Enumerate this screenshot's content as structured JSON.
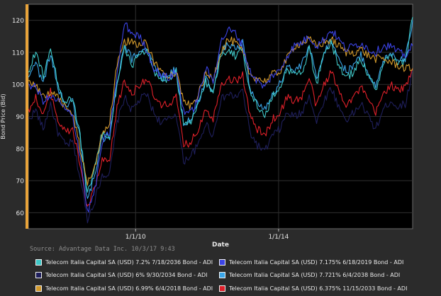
{
  "chart_data": {
    "type": "line",
    "xlabel": "Date",
    "ylabel": "Bond Price (Bid)",
    "x_ticks": [
      "1/1/10",
      "1/1/14"
    ],
    "ylim": [
      55,
      125
    ],
    "y_ticks": [
      60,
      70,
      80,
      90,
      100,
      110,
      120
    ],
    "grid": true,
    "legend_position": "bottom",
    "source": "Source: Advantage Data Inc. 10/3/17 9:43",
    "series": [
      {
        "name": "Telecom Italia Capital SA (USD) 7.2% 7/18/2036 Bond - ADI",
        "color": "#3fc8c8",
        "values": [
          104,
          110,
          103,
          112,
          100,
          94,
          96,
          84,
          66,
          74,
          85,
          84,
          100,
          111,
          106,
          109,
          110,
          104,
          101,
          102,
          104,
          87,
          88,
          94,
          101,
          97,
          109,
          111,
          109,
          111,
          98,
          93,
          90,
          96,
          99,
          105,
          103,
          104,
          111,
          100,
          109,
          113,
          106,
          102,
          104,
          108,
          103,
          98,
          106,
          109,
          106,
          107,
          121
        ]
      },
      {
        "name": "Telecom Italia Capital SA (USD) 7.175% 6/18/2019 Bond - ADI",
        "color": "#3c44e6",
        "values": [
          100,
          99,
          95,
          96,
          95,
          92,
          90,
          78,
          60,
          67,
          82,
          85,
          103,
          119,
          116,
          115,
          111,
          105,
          103,
          102,
          104,
          92,
          91,
          96,
          105,
          101,
          113,
          117,
          116,
          112,
          104,
          101,
          99,
          103,
          104,
          109,
          112,
          113,
          115,
          112,
          114,
          117,
          114,
          111,
          112,
          113,
          111,
          110,
          112,
          112,
          110,
          109,
          112
        ]
      },
      {
        "name": "Telecom Italia Capital SA (USD) 6% 9/30/2034 Bond - ADI",
        "color": "#1f1f5c",
        "values": [
          89,
          92,
          86,
          94,
          85,
          81,
          82,
          71,
          58,
          64,
          72,
          72,
          88,
          96,
          92,
          95,
          97,
          91,
          88,
          89,
          91,
          76,
          78,
          81,
          88,
          84,
          95,
          97,
          96,
          98,
          85,
          81,
          79,
          84,
          86,
          91,
          90,
          91,
          97,
          88,
          95,
          99,
          93,
          89,
          91,
          94,
          90,
          86,
          92,
          95,
          93,
          94,
          104
        ]
      },
      {
        "name": "Telecom Italia Capital SA (USD) 7.721% 6/4/2038 Bond - ADI",
        "color": "#3aa6ea",
        "values": [
          103,
          107,
          100,
          110,
          99,
          93,
          95,
          83,
          64,
          72,
          83,
          83,
          100,
          112,
          108,
          110,
          112,
          106,
          102,
          103,
          105,
          88,
          89,
          94,
          102,
          98,
          110,
          113,
          111,
          113,
          99,
          94,
          92,
          97,
          100,
          106,
          104,
          106,
          112,
          102,
          110,
          114,
          108,
          104,
          106,
          109,
          104,
          99,
          107,
          110,
          108,
          108,
          120
        ]
      },
      {
        "name": "Telecom Italia Capital SA (USD) 6.99% 6/4/2018 Bond - ADI",
        "color": "#d39a2c",
        "values": [
          101,
          100,
          96,
          97,
          96,
          93,
          91,
          80,
          69,
          74,
          85,
          88,
          106,
          113,
          114,
          112,
          113,
          107,
          104,
          103,
          104,
          95,
          93,
          97,
          103,
          102,
          110,
          114,
          113,
          110,
          103,
          102,
          101,
          103,
          104,
          108,
          112,
          113,
          114,
          112,
          113,
          114,
          112,
          110,
          110,
          111,
          109,
          108,
          108,
          107,
          106,
          105,
          105
        ]
      },
      {
        "name": "Telecom Italia Capital SA (USD) 6.375% 11/15/2033 Bond - ADI",
        "color": "#e0202a",
        "values": [
          92,
          96,
          90,
          98,
          89,
          85,
          86,
          75,
          61,
          68,
          76,
          76,
          93,
          101,
          97,
          100,
          102,
          96,
          93,
          94,
          96,
          81,
          82,
          86,
          93,
          89,
          100,
          102,
          101,
          103,
          90,
          86,
          84,
          89,
          91,
          96,
          95,
          96,
          102,
          93,
          100,
          104,
          98,
          94,
          96,
          99,
          95,
          91,
          97,
          100,
          98,
          99,
          105
        ]
      }
    ]
  }
}
